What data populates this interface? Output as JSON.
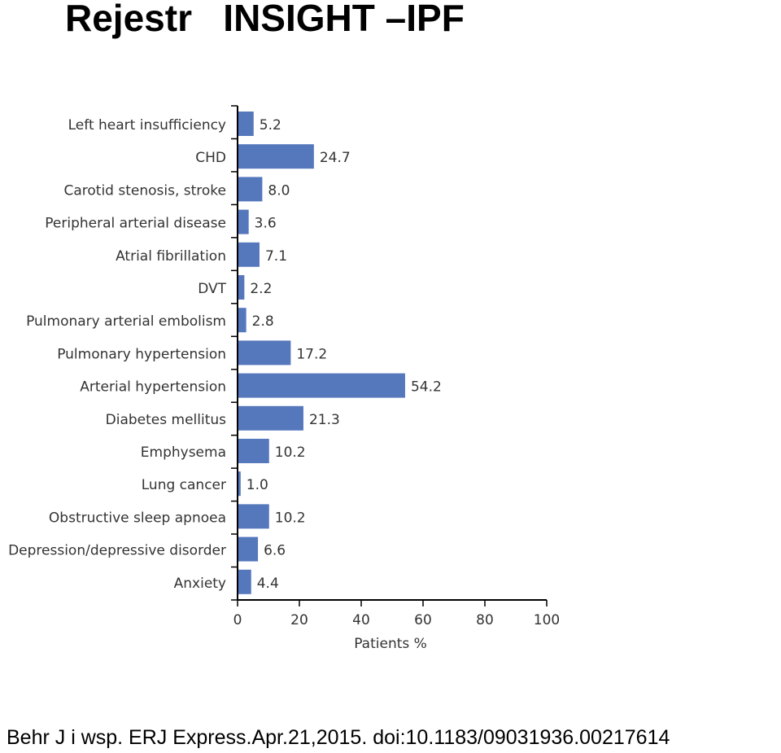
{
  "slide": {
    "title": "Rejestr   INSIGHT –IPF",
    "citation": "Behr J i wsp. ERJ Express.Apr.21,2015.  doi:10.1183/09031936.00217614"
  },
  "colors": {
    "bar": "#5577BC",
    "axis": "#000000",
    "label_text": "#333333"
  },
  "chart_data": {
    "type": "bar",
    "orientation": "horizontal",
    "categories": [
      "Left heart insufficiency",
      "CHD",
      "Carotid stenosis, stroke",
      "Peripheral arterial disease",
      "Atrial fibrillation",
      "DVT",
      "Pulmonary arterial embolism",
      "Pulmonary hypertension",
      "Arterial hypertension",
      "Diabetes mellitus",
      "Emphysema",
      "Lung cancer",
      "Obstructive sleep apnoea",
      "Depression/depressive disorder",
      "Anxiety"
    ],
    "values": [
      5.2,
      24.7,
      8.0,
      3.6,
      7.1,
      2.2,
      2.8,
      17.2,
      54.2,
      21.3,
      10.2,
      1.0,
      10.2,
      6.6,
      4.4
    ],
    "value_labels": [
      "5.2",
      "24.7",
      "8.0",
      "3.6",
      "7.1",
      "2.2",
      "2.8",
      "17.2",
      "54.2",
      "21.3",
      "10.2",
      "1.0",
      "10.2",
      "6.6",
      "4.4"
    ],
    "xlabel": "Patients %",
    "ylabel": "",
    "xlim": [
      0,
      100
    ],
    "xticks": [
      0,
      20,
      40,
      60,
      80,
      100
    ],
    "xtick_labels": [
      "0",
      "20",
      "40",
      "60",
      "80",
      "100"
    ],
    "grid": false,
    "legend": "none"
  }
}
